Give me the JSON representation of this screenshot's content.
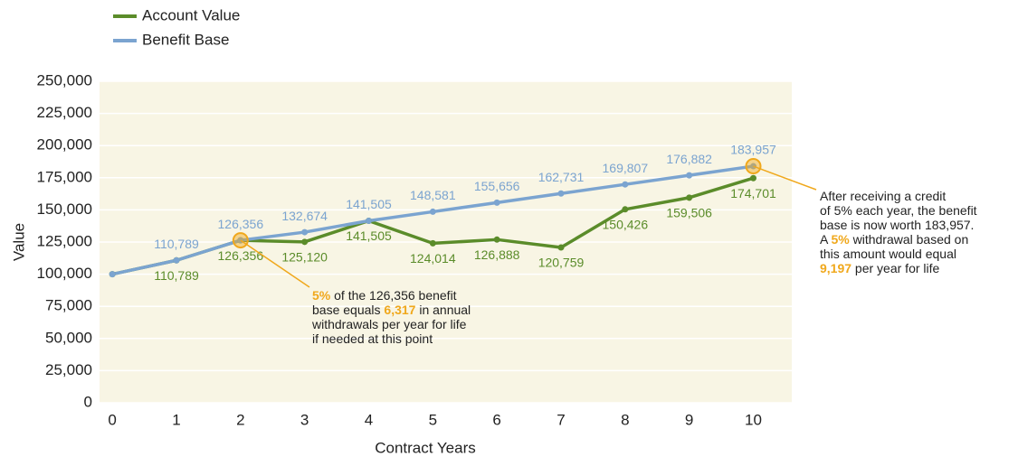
{
  "chart_data": {
    "type": "line",
    "x_label": "Contract Years",
    "y_label": "Value",
    "x": [
      0,
      1,
      2,
      3,
      4,
      5,
      6,
      7,
      8,
      9,
      10
    ],
    "xlim": [
      -0.2,
      10.6
    ],
    "xticks": [
      0,
      1,
      2,
      3,
      4,
      5,
      6,
      7,
      8,
      9,
      10
    ],
    "ylim": [
      0,
      250000
    ],
    "yticks": [
      0,
      {
        "value": 25000,
        "label": "25,000"
      },
      {
        "value": 50000,
        "label": "50,000"
      },
      {
        "value": 75000,
        "label": "75,000"
      },
      {
        "value": 100000,
        "label": "100,000"
      },
      {
        "value": 125000,
        "label": "125,000"
      },
      {
        "value": 150000,
        "label": "150,000"
      },
      {
        "value": 175000,
        "label": "175,000"
      },
      {
        "value": 200000,
        "label": "200,000"
      },
      {
        "value": 225000,
        "label": "225,000"
      },
      {
        "value": 250000,
        "label": "250,000"
      }
    ],
    "grid": true,
    "legend": "top-left",
    "series": [
      {
        "name": "Account Value",
        "color": "#5b8c2a",
        "values": [
          100000,
          110789,
          126356,
          125120,
          141505,
          124014,
          126888,
          120759,
          150426,
          159506,
          174701
        ],
        "value_labels": [
          null,
          "110,789",
          "126,356",
          "125,120",
          "141,505",
          "124,014",
          "126,888",
          "120,759",
          "150,426",
          "159,506",
          "174,701"
        ]
      },
      {
        "name": "Benefit Base",
        "color": "#7ba4d0",
        "values": [
          100000,
          110789,
          126356,
          132674,
          141505,
          148581,
          155656,
          162731,
          169807,
          176882,
          183957
        ],
        "value_labels": [
          null,
          "110,789",
          "126,356",
          "132,674",
          "141,505",
          "148,581",
          "155,656",
          "162,731",
          "169,807",
          "176,882",
          "183,957"
        ]
      }
    ],
    "annotations": [
      {
        "x": 2,
        "color": "#f0a81c",
        "lines": [
          [
            {
              "text": "5%",
              "bold": true
            },
            {
              "text": " of the 126,356 benefit"
            }
          ],
          [
            {
              "text": "base equals "
            },
            {
              "text": "6,317",
              "bold": true
            },
            {
              "text": " in annual"
            }
          ],
          [
            {
              "text": "withdrawals per year for life"
            }
          ],
          [
            {
              "text": "if needed at this point"
            }
          ]
        ]
      },
      {
        "x": 10,
        "color": "#f0a81c",
        "lines": [
          [
            {
              "text": "After receiving a credit"
            }
          ],
          [
            {
              "text": "of 5% each year, the benefit"
            }
          ],
          [
            {
              "text": "base is now worth 183,957."
            }
          ],
          [
            {
              "text": "A "
            },
            {
              "text": "5%",
              "bold": true
            },
            {
              "text": " withdrawal based on"
            }
          ],
          [
            {
              "text": "this amount would equal"
            }
          ],
          [
            {
              "text": "9,197",
              "bold": true
            },
            {
              "text": " per year for life"
            }
          ]
        ]
      }
    ]
  }
}
